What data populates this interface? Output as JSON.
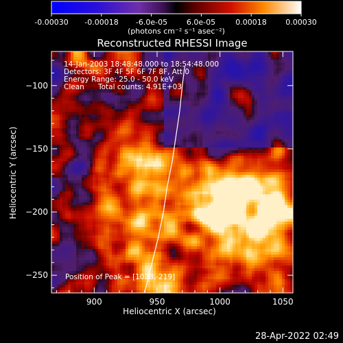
{
  "colorbar": {
    "ticks": [
      "-0.00030",
      "-0.00018",
      "-6.0e-05",
      "6.0e-05",
      "0.00018",
      "0.00030"
    ],
    "unit_label": "(photons cm⁻² s⁻¹ asec⁻²)",
    "range": [
      -0.0003,
      0.0003
    ]
  },
  "title": "Reconstructed RHESSI Image",
  "annotations": {
    "line1": "14-Jan-2003 18:48:48.000 to 18:54:48.000",
    "line2": "Detectors: 3F 4F 5F 6F 7F 8F, Att 0",
    "line3": "Energy Range: 25.0 - 50.0 keV",
    "line4_left": "Clean",
    "line4_right": "Total counts: 4.91E+03",
    "peak": "Position of Peak = [1028,-219]"
  },
  "footer_timestamp": "28-Apr-2022 02:49",
  "chart_data": {
    "type": "heatmap",
    "title": "Reconstructed RHESSI Image",
    "xlabel": "Heliocentric X (arcsec)",
    "ylabel": "Heliocentric Y (arcsec)",
    "xlim": [
      866,
      1058
    ],
    "ylim": [
      -264,
      -73
    ],
    "xticks": [
      900,
      950,
      1000,
      1050
    ],
    "yticks": [
      -100,
      -150,
      -200,
      -250
    ],
    "peak_position": [
      1028,
      -219
    ],
    "limb_line": [
      [
        940,
        -264
      ],
      [
        946,
        -240
      ],
      [
        951,
        -220
      ],
      [
        955,
        -200
      ],
      [
        958,
        -180
      ],
      [
        962,
        -160
      ],
      [
        965,
        -140
      ],
      [
        968,
        -120
      ],
      [
        970,
        -100
      ],
      [
        972,
        -85
      ]
    ],
    "colormap": "IDL red-temperature with blue-purple negatives"
  }
}
